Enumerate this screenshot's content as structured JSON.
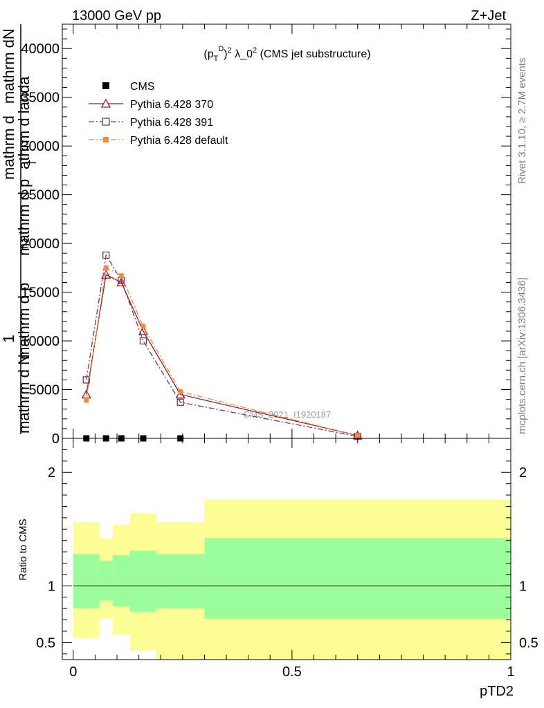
{
  "header": {
    "left": "13000 GeV pp",
    "right": "Z+Jet"
  },
  "side": {
    "rivet": "Rivet 3.1.10, ≥ 2.7M events",
    "mcplots": "mcplots.cern.ch [arXiv:1306.3436]"
  },
  "watermark": "CMS_2021_I1920187",
  "chart_data": [
    {
      "type": "line",
      "title": "(p_T^D)^2 λ_0^2 (CMS jet substructure)",
      "xlabel": "pTD2",
      "ylabel": "1 / mathrm d N mathrm d p_T mathrm d lambda ... mathrm d^2N / mathrm d p_T mathrm d lambda",
      "xlim": [
        -0.025,
        1.0
      ],
      "ylim": [
        0,
        42500
      ],
      "yticks": [
        0,
        5000,
        10000,
        15000,
        20000,
        25000,
        30000,
        35000,
        40000
      ],
      "ytick_labels": [
        "0",
        "5000",
        "10000",
        "15000",
        "20000",
        "25000",
        "30000",
        "35000",
        "40000"
      ],
      "legend_position": "top-left",
      "series": [
        {
          "name": "CMS",
          "marker": "square",
          "color": "#000000",
          "x": [
            0.03,
            0.075,
            0.11,
            0.16,
            0.245
          ],
          "y": [
            0,
            0,
            0,
            0,
            0
          ]
        },
        {
          "name": "Pythia 6.428 370",
          "marker": "triangle-open",
          "line": "solid",
          "color": "#8b1a2b",
          "x": [
            0.03,
            0.075,
            0.11,
            0.16,
            0.245,
            0.65
          ],
          "y": [
            4500,
            16800,
            16000,
            11000,
            4500,
            300
          ]
        },
        {
          "name": "Pythia 6.428 391",
          "marker": "square-open",
          "line": "dashdot",
          "color": "#6e3b56",
          "x": [
            0.03,
            0.075,
            0.11,
            0.16,
            0.245,
            0.65
          ],
          "y": [
            6000,
            18800,
            16200,
            10000,
            3700,
            200
          ]
        },
        {
          "name": "Pythia 6.428 default",
          "marker": "square-filled",
          "line": "dashdot",
          "color": "#f6893b",
          "x": [
            0.03,
            0.075,
            0.11,
            0.16,
            0.245,
            0.65
          ],
          "y": [
            3900,
            17500,
            16700,
            11500,
            4800,
            280
          ]
        }
      ]
    },
    {
      "type": "area",
      "title": "",
      "xlabel": "pTD2",
      "ylabel": "Ratio to CMS",
      "xlim": [
        -0.025,
        1.0
      ],
      "ylim": [
        0.35,
        2.3
      ],
      "yticks": [
        0.5,
        1,
        2
      ],
      "ytick_labels": [
        "0.5",
        "1",
        "2"
      ],
      "xticks": [
        0,
        0.5,
        1
      ],
      "xtick_labels": [
        "0",
        "0.5",
        "1"
      ],
      "reference_line": 1,
      "bands": {
        "edges": [
          0.0,
          0.06,
          0.09,
          0.13,
          0.19,
          0.3,
          1.0
        ],
        "outer": {
          "color": "#fdfd96",
          "low": [
            0.54,
            0.71,
            0.57,
            0.43,
            0.35,
            0.35
          ],
          "high": [
            1.56,
            1.42,
            1.54,
            1.64,
            1.56,
            1.76
          ]
        },
        "inner": {
          "color": "#9bfd9b",
          "low": [
            0.8,
            0.87,
            0.82,
            0.77,
            0.8,
            0.71
          ],
          "high": [
            1.28,
            1.22,
            1.27,
            1.31,
            1.28,
            1.42
          ]
        }
      }
    }
  ]
}
